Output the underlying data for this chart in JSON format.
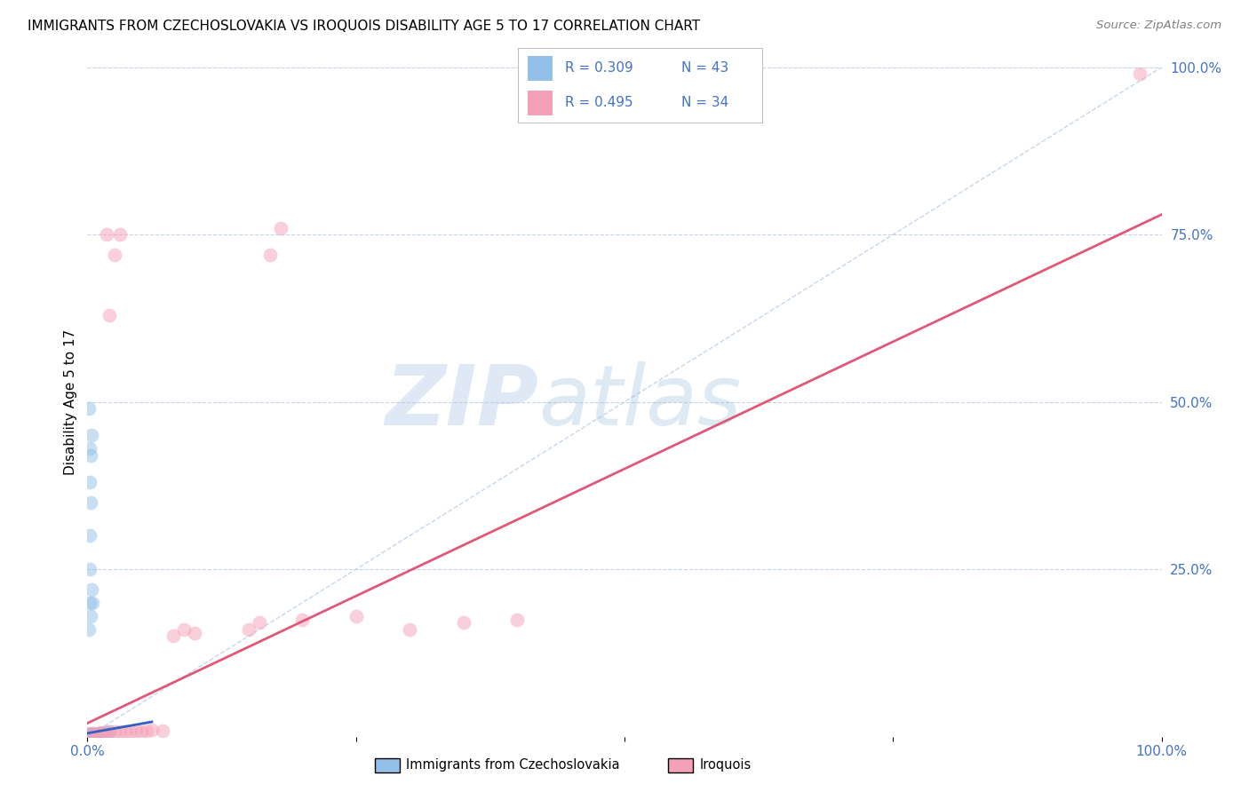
{
  "title": "IMMIGRANTS FROM CZECHOSLOVAKIA VS IROQUOIS DISABILITY AGE 5 TO 17 CORRELATION CHART",
  "source": "Source: ZipAtlas.com",
  "ylabel": "Disability Age 5 to 17",
  "xlim": [
    0,
    1
  ],
  "ylim": [
    0,
    1
  ],
  "color_blue": "#92C0E8",
  "color_pink": "#F4A0B8",
  "color_blue_line": "#3060C0",
  "color_pink_line": "#E05878",
  "color_diag": "#B8CCE8",
  "watermark_zip": "ZIP",
  "watermark_atlas": "atlas",
  "blue_points": [
    [
      0.001,
      0.001
    ],
    [
      0.001,
      0.002
    ],
    [
      0.001,
      0.003
    ],
    [
      0.002,
      0.001
    ],
    [
      0.002,
      0.002
    ],
    [
      0.002,
      0.003
    ],
    [
      0.002,
      0.004
    ],
    [
      0.003,
      0.001
    ],
    [
      0.003,
      0.002
    ],
    [
      0.003,
      0.003
    ],
    [
      0.003,
      0.004
    ],
    [
      0.004,
      0.001
    ],
    [
      0.004,
      0.002
    ],
    [
      0.004,
      0.003
    ],
    [
      0.005,
      0.002
    ],
    [
      0.005,
      0.003
    ],
    [
      0.005,
      0.004
    ],
    [
      0.006,
      0.003
    ],
    [
      0.006,
      0.004
    ],
    [
      0.007,
      0.003
    ],
    [
      0.007,
      0.004
    ],
    [
      0.008,
      0.003
    ],
    [
      0.008,
      0.004
    ],
    [
      0.009,
      0.004
    ],
    [
      0.01,
      0.004
    ],
    [
      0.012,
      0.005
    ],
    [
      0.013,
      0.005
    ],
    [
      0.015,
      0.006
    ],
    [
      0.018,
      0.006
    ],
    [
      0.02,
      0.007
    ],
    [
      0.002,
      0.2
    ],
    [
      0.002,
      0.38
    ],
    [
      0.003,
      0.42
    ],
    [
      0.004,
      0.45
    ],
    [
      0.003,
      0.35
    ],
    [
      0.002,
      0.3
    ],
    [
      0.002,
      0.43
    ],
    [
      0.001,
      0.49
    ],
    [
      0.001,
      0.16
    ],
    [
      0.002,
      0.25
    ],
    [
      0.003,
      0.18
    ],
    [
      0.004,
      0.22
    ],
    [
      0.005,
      0.2
    ]
  ],
  "pink_points": [
    [
      0.005,
      0.005
    ],
    [
      0.008,
      0.004
    ],
    [
      0.01,
      0.005
    ],
    [
      0.012,
      0.006
    ],
    [
      0.015,
      0.005
    ],
    [
      0.018,
      0.006
    ],
    [
      0.02,
      0.007
    ],
    [
      0.025,
      0.007
    ],
    [
      0.03,
      0.008
    ],
    [
      0.035,
      0.007
    ],
    [
      0.04,
      0.008
    ],
    [
      0.045,
      0.009
    ],
    [
      0.05,
      0.008
    ],
    [
      0.055,
      0.009
    ],
    [
      0.06,
      0.01
    ],
    [
      0.07,
      0.009
    ],
    [
      0.08,
      0.15
    ],
    [
      0.09,
      0.16
    ],
    [
      0.1,
      0.155
    ],
    [
      0.15,
      0.16
    ],
    [
      0.16,
      0.17
    ],
    [
      0.2,
      0.175
    ],
    [
      0.25,
      0.18
    ],
    [
      0.3,
      0.16
    ],
    [
      0.35,
      0.17
    ],
    [
      0.4,
      0.175
    ],
    [
      0.02,
      0.63
    ],
    [
      0.025,
      0.72
    ],
    [
      0.03,
      0.75
    ],
    [
      0.018,
      0.75
    ],
    [
      0.17,
      0.72
    ],
    [
      0.18,
      0.76
    ],
    [
      0.98,
      0.99
    ],
    [
      0.002,
      0.005
    ]
  ]
}
